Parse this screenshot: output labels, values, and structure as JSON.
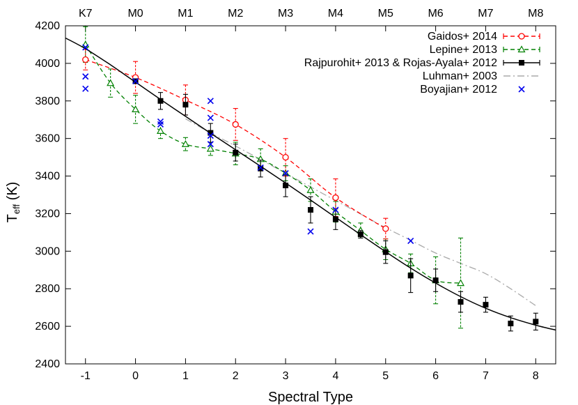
{
  "chart_data": {
    "type": "scatter",
    "xlabel": "Spectral Type",
    "ylabel": "T",
    "ylabel_sub": "eff",
    "ylabel_unit": " (K)",
    "xlim": [
      -1.4,
      8.4
    ],
    "ylim": [
      2400,
      4200
    ],
    "x_ticks": [
      -1,
      0,
      1,
      2,
      3,
      4,
      5,
      6,
      7,
      8
    ],
    "x_tick_labels": [
      "-1",
      "0",
      "1",
      "2",
      "3",
      "4",
      "5",
      "6",
      "7",
      "8"
    ],
    "y_ticks": [
      2400,
      2600,
      2800,
      3000,
      3200,
      3400,
      3600,
      3800,
      4000,
      4200
    ],
    "y_tick_labels": [
      "2400",
      "2600",
      "2800",
      "3000",
      "3200",
      "3400",
      "3600",
      "3800",
      "4000",
      "4200"
    ],
    "top_ticks": [
      -1,
      0,
      1,
      2,
      3,
      4,
      5,
      6,
      7,
      8
    ],
    "top_tick_labels": [
      "K7",
      "M0",
      "M1",
      "M2",
      "M3",
      "M4",
      "M5",
      "M6",
      "M7",
      "M8"
    ],
    "grid": false,
    "legend_position": "top-right",
    "series": [
      {
        "name": "Gaidos+ 2014",
        "color": "#ff0000",
        "marker": "open-circle",
        "line": "dashed",
        "x": [
          -1,
          0,
          1,
          2,
          3,
          4,
          5
        ],
        "y": [
          4020,
          3925,
          3805,
          3675,
          3500,
          3285,
          3120
        ],
        "err": [
          55,
          85,
          80,
          85,
          100,
          100,
          55
        ]
      },
      {
        "name": "Lepine+ 2013",
        "color": "#008000",
        "marker": "open-triangle",
        "line": "dashed",
        "x": [
          -1,
          -0.5,
          0,
          0.5,
          1,
          1.5,
          2,
          2.5,
          3,
          3.5,
          4,
          4.5,
          5,
          5.5,
          6,
          6.5
        ],
        "y": [
          4100,
          3895,
          3755,
          3640,
          3570,
          3545,
          3520,
          3490,
          3415,
          3325,
          3210,
          3110,
          3010,
          2935,
          2845,
          2830
        ],
        "err": [
          95,
          75,
          75,
          40,
          35,
          35,
          60,
          55,
          40,
          60,
          55,
          40,
          55,
          50,
          125,
          240
        ]
      },
      {
        "name": "Rajpurohit+ 2013 & Rojas-Ayala+ 2012",
        "color": "#000000",
        "marker": "filled-square",
        "line": "solid",
        "x": [
          0,
          0.5,
          1,
          1.5,
          2,
          2.5,
          3,
          3.5,
          4,
          4.5,
          5,
          5.5,
          6,
          6.5,
          7,
          7.5,
          8
        ],
        "y": [
          3905,
          3800,
          3780,
          3630,
          3525,
          3440,
          3350,
          3220,
          3170,
          3090,
          2995,
          2870,
          2845,
          2730,
          2715,
          2615,
          2625
        ],
        "err": [
          0,
          45,
          55,
          50,
          45,
          45,
          60,
          70,
          55,
          20,
          60,
          90,
          60,
          55,
          40,
          40,
          45
        ],
        "fit_x": [
          -1.4,
          -1,
          -0.5,
          0,
          0.5,
          1,
          1.5,
          2,
          2.5,
          3,
          3.5,
          4,
          4.5,
          5,
          5.5,
          6,
          6.5,
          7,
          7.5,
          8,
          8.4
        ],
        "fit_y": [
          4135,
          4078,
          3992,
          3900,
          3808,
          3718,
          3628,
          3540,
          3452,
          3363,
          3272,
          3180,
          3088,
          2997,
          2910,
          2830,
          2758,
          2696,
          2646,
          2606,
          2580
        ]
      },
      {
        "name": "Luhman+ 2003",
        "color": "#aaaaaa",
        "marker": "none",
        "line": "dash-dot",
        "x": [
          1,
          1.5,
          2,
          2.5,
          3,
          3.5,
          4,
          4.5,
          5,
          5.5,
          6,
          6.5,
          7,
          7.5,
          8
        ],
        "y": [
          3705,
          3630,
          3560,
          3488,
          3415,
          3342,
          3270,
          3198,
          3125,
          3058,
          2990,
          2935,
          2880,
          2800,
          2710
        ]
      },
      {
        "name": "Boyajian+ 2012",
        "color": "#0000ee",
        "marker": "x",
        "line": "none",
        "x": [
          -1,
          -1,
          -1,
          0,
          0.5,
          0.5,
          1.5,
          1.5,
          1.5,
          1.5,
          2.5,
          3,
          3.5,
          4,
          5.5
        ],
        "y": [
          4085,
          3930,
          3865,
          3905,
          3690,
          3675,
          3800,
          3710,
          3615,
          3570,
          3445,
          3415,
          3105,
          3220,
          3055
        ]
      }
    ]
  }
}
